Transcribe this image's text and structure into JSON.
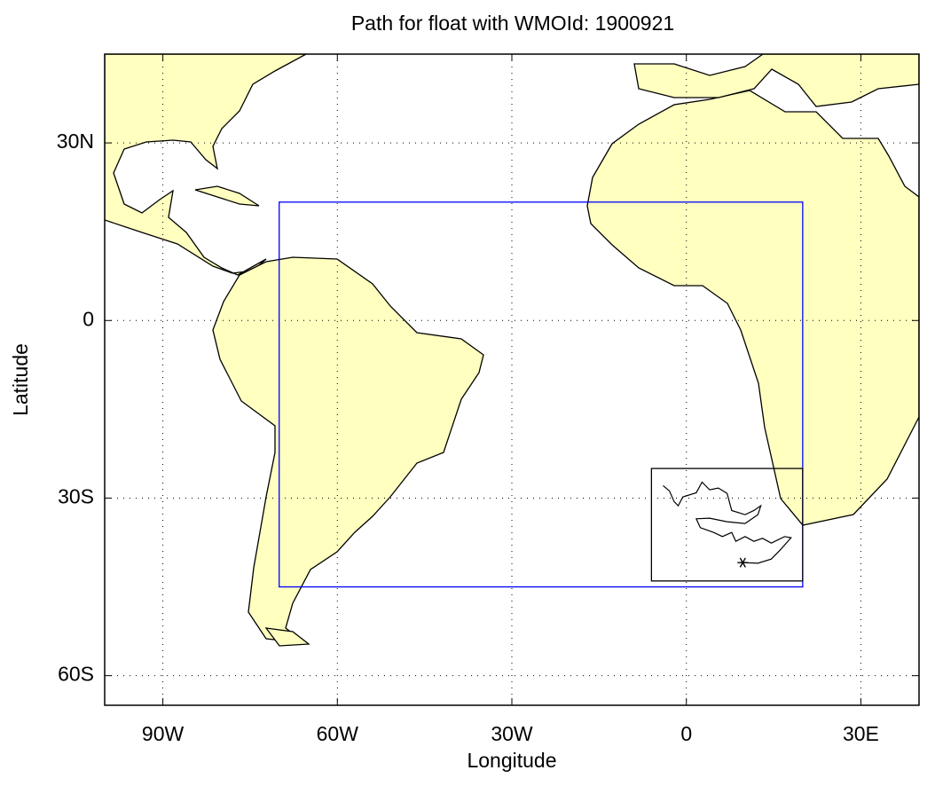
{
  "chart_data": {
    "type": "map",
    "title": "Path for float with WMOId: 1900921",
    "xlabel": "Longitude",
    "ylabel": "Latitude",
    "xlim": [
      -100,
      40
    ],
    "ylim": [
      -65,
      45
    ],
    "xticks": [
      {
        "value": -90,
        "label": "90W"
      },
      {
        "value": -60,
        "label": "60W"
      },
      {
        "value": -30,
        "label": "30W"
      },
      0,
      {
        "value": 30,
        "label": "30E"
      }
    ],
    "yticks": [
      {
        "value": 30,
        "label": "30N"
      },
      0,
      {
        "value": -30,
        "label": "30S"
      },
      {
        "value": -60,
        "label": "60S"
      }
    ],
    "grid": true,
    "land_color": "#ffffc0",
    "regions": [
      {
        "color": "#0000ff",
        "lon": [
          -70,
          20
        ],
        "lat": [
          -45,
          20
        ]
      },
      {
        "color": "#000000",
        "lon": [
          -6,
          20
        ],
        "lat": [
          -44,
          -25
        ]
      }
    ],
    "series": [
      {
        "color": "#000000",
        "x": [
          -4.0,
          -2.9,
          -2.1,
          -1.4,
          -0.6,
          1.7,
          2.7,
          4.0,
          5.5,
          7.0,
          7.8,
          10.1,
          11.6,
          12.8,
          12.3,
          10.1,
          7.0,
          4.0,
          1.7,
          2.4,
          4.7,
          6.2,
          7.8,
          8.5,
          10.1,
          11.6,
          13.1,
          14.6,
          16.9,
          18.0,
          16.1,
          14.6,
          12.3,
          9.7
        ],
        "y": [
          -27.9,
          -28.8,
          -30.6,
          -31.3,
          -29.8,
          -29.1,
          -27.3,
          -28.6,
          -28.3,
          -29.2,
          -32.1,
          -32.8,
          -32.1,
          -31.3,
          -32.8,
          -34.3,
          -34.0,
          -33.4,
          -33.5,
          -35.0,
          -35.8,
          -36.5,
          -35.8,
          -37.3,
          -36.5,
          -37.3,
          -36.8,
          -37.6,
          -36.5,
          -36.7,
          -38.8,
          -40.3,
          -41.0,
          -40.9
        ]
      }
    ]
  }
}
